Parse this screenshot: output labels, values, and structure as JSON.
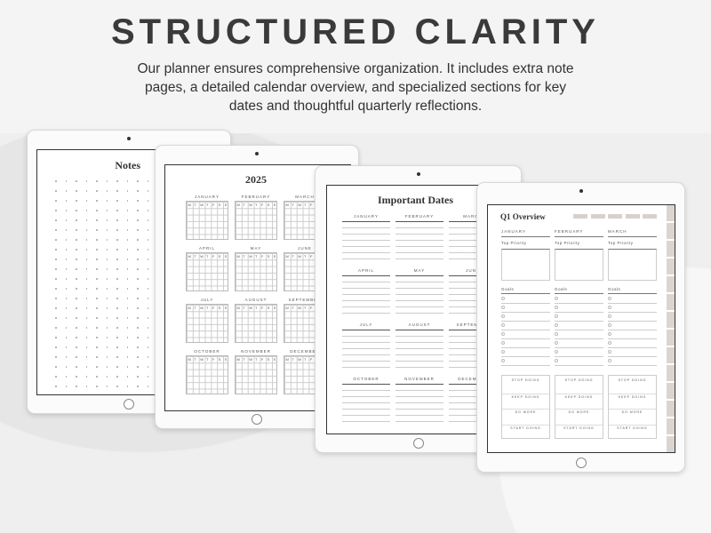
{
  "headline": "STRUCTURED CLARITY",
  "description": "Our planner ensures comprehensive organization. It includes extra note pages, a detailed calendar overview, and specialized sections for key dates and thoughtful quarterly reflections.",
  "notes": {
    "title": "Notes"
  },
  "calendar": {
    "title": "2025",
    "weekdays": [
      "M",
      "T",
      "W",
      "T",
      "F",
      "S",
      "S"
    ],
    "months": [
      "JANUARY",
      "FEBRUARY",
      "MARCH",
      "APRIL",
      "MAY",
      "JUNE",
      "JULY",
      "AUGUST",
      "SEPTEMBER",
      "OCTOBER",
      "NOVEMBER",
      "DECEMBER"
    ]
  },
  "important_dates": {
    "title": "Important Dates",
    "months": [
      "JANUARY",
      "FEBRUARY",
      "MARCH",
      "APRIL",
      "MAY",
      "JUNE",
      "JULY",
      "AUGUST",
      "SEPTEMBER",
      "OCTOBER",
      "NOVEMBER",
      "DECEMBER"
    ]
  },
  "q1": {
    "title": "Q1 Overview",
    "months": [
      "JANUARY",
      "FEBRUARY",
      "MARCH"
    ],
    "priority_label": "Top Priority",
    "goals_label": "Goals",
    "reflection": [
      "STOP DOING",
      "KEEP DOING",
      "DO MORE",
      "START DOING"
    ]
  },
  "colors": {
    "accent_tab": "#d9d0cb",
    "text": "#3a3a3a"
  }
}
